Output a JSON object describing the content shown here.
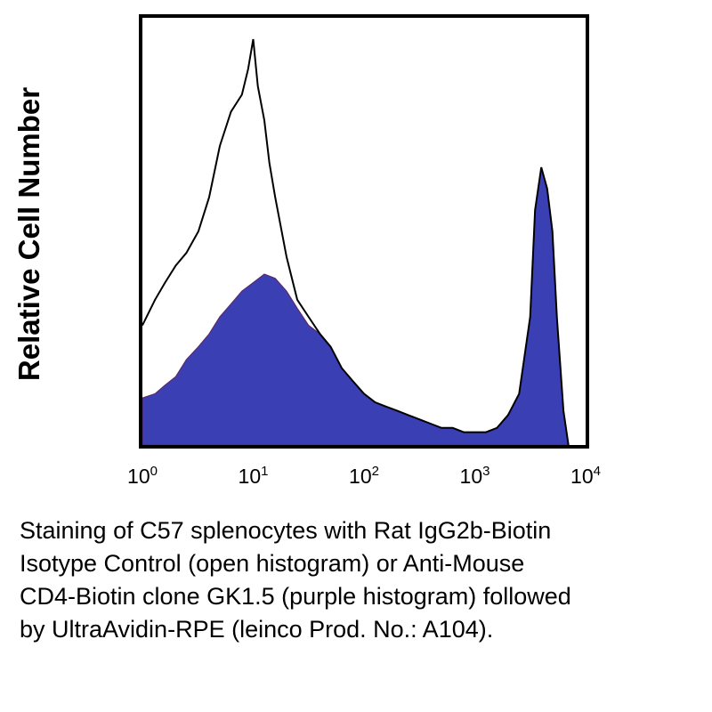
{
  "chart_data": {
    "type": "area",
    "ylabel": "Relative Cell Number",
    "xlabel": "",
    "x_scale": "log",
    "xlim": [
      1,
      10000
    ],
    "x_ticks": [
      {
        "value": 1,
        "base": "10",
        "exp": "0"
      },
      {
        "value": 10,
        "base": "10",
        "exp": "1"
      },
      {
        "value": 100,
        "base": "10",
        "exp": "2"
      },
      {
        "value": 1000,
        "base": "10",
        "exp": "3"
      },
      {
        "value": 10000,
        "base": "10",
        "exp": "4"
      }
    ],
    "ylim": [
      0,
      100
    ],
    "grid": false,
    "series": [
      {
        "style": "filled",
        "color": "#3b3fb4",
        "x": [
          1,
          1.3,
          1.6,
          2,
          2.5,
          3.2,
          4,
          5,
          6.3,
          7.9,
          10,
          12.6,
          15.8,
          20,
          25,
          31.6,
          40,
          50,
          63,
          79,
          100,
          126,
          158,
          200,
          251,
          316,
          398,
          501,
          631,
          794,
          1000,
          1259,
          1585,
          1995,
          2512,
          3162,
          3500,
          3981,
          4500,
          5012,
          5500,
          6310,
          7000
        ],
        "y": [
          11,
          12,
          14,
          16,
          20,
          23,
          26,
          30,
          33,
          36,
          38,
          40,
          39,
          36,
          32,
          28,
          26,
          23,
          18,
          15,
          12,
          10,
          9,
          8,
          7,
          6,
          5,
          4,
          4,
          3,
          3,
          3,
          4,
          7,
          12,
          30,
          55,
          65,
          60,
          50,
          30,
          8,
          0
        ]
      },
      {
        "style": "open",
        "color": "#000000",
        "x": [
          1,
          1.3,
          1.6,
          2,
          2.5,
          3.2,
          4,
          5,
          6.3,
          7.9,
          9,
          10,
          11,
          12.6,
          14,
          15.8,
          20,
          25,
          31.6,
          40,
          50,
          63,
          79,
          100,
          126,
          158,
          200,
          251,
          316,
          398,
          501,
          631,
          794,
          1000,
          1259,
          1585,
          1995,
          2512,
          3162,
          3500,
          3981,
          4500,
          5012,
          5500,
          6310,
          7000
        ],
        "y": [
          28,
          34,
          38,
          42,
          45,
          50,
          58,
          70,
          78,
          82,
          88,
          95,
          84,
          76,
          66,
          58,
          44,
          34,
          30,
          26,
          23,
          18,
          15,
          12,
          10,
          9,
          8,
          7,
          6,
          5,
          4,
          4,
          3,
          3,
          3,
          4,
          7,
          12,
          30,
          55,
          65,
          60,
          50,
          30,
          8,
          0
        ]
      }
    ]
  },
  "caption": {
    "lines": [
      "Staining of C57 splenocytes with Rat IgG2b-Biotin",
      "Isotype Control (open histogram) or Anti-Mouse",
      "CD4-Biotin clone GK1.5 (purple histogram) followed",
      "by UltraAvidin-RPE (leinco Prod. No.: A104)."
    ]
  }
}
